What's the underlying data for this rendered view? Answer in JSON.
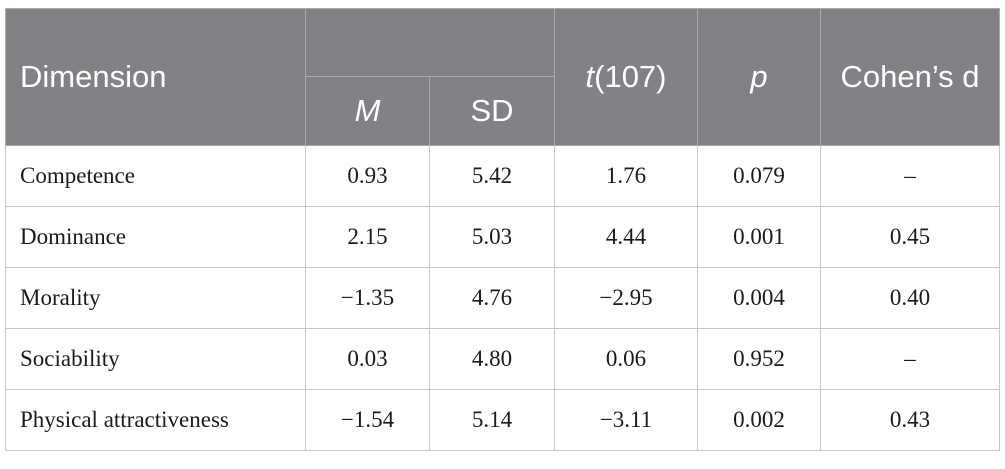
{
  "header": {
    "dimension": "Dimension",
    "m": "M",
    "sd": "SD",
    "t_italic": "t",
    "t_df": "(107)",
    "p": "p",
    "cohens_d": "Cohen’s d"
  },
  "rows": [
    {
      "dimension": "Competence",
      "m": "0.93",
      "sd": "5.42",
      "t": "1.76",
      "p": "0.079",
      "d": "–"
    },
    {
      "dimension": "Dominance",
      "m": "2.15",
      "sd": "5.03",
      "t": "4.44",
      "p": "0.001",
      "d": "0.45"
    },
    {
      "dimension": "Morality",
      "m": "−1.35",
      "sd": "4.76",
      "t": "−2.95",
      "p": "0.004",
      "d": "0.40"
    },
    {
      "dimension": "Sociability",
      "m": "0.03",
      "sd": "4.80",
      "t": "0.06",
      "p": "0.952",
      "d": "–"
    },
    {
      "dimension": "Physical attractiveness",
      "m": "−1.54",
      "sd": "5.14",
      "t": "−3.11",
      "p": "0.002",
      "d": "0.43"
    }
  ]
}
